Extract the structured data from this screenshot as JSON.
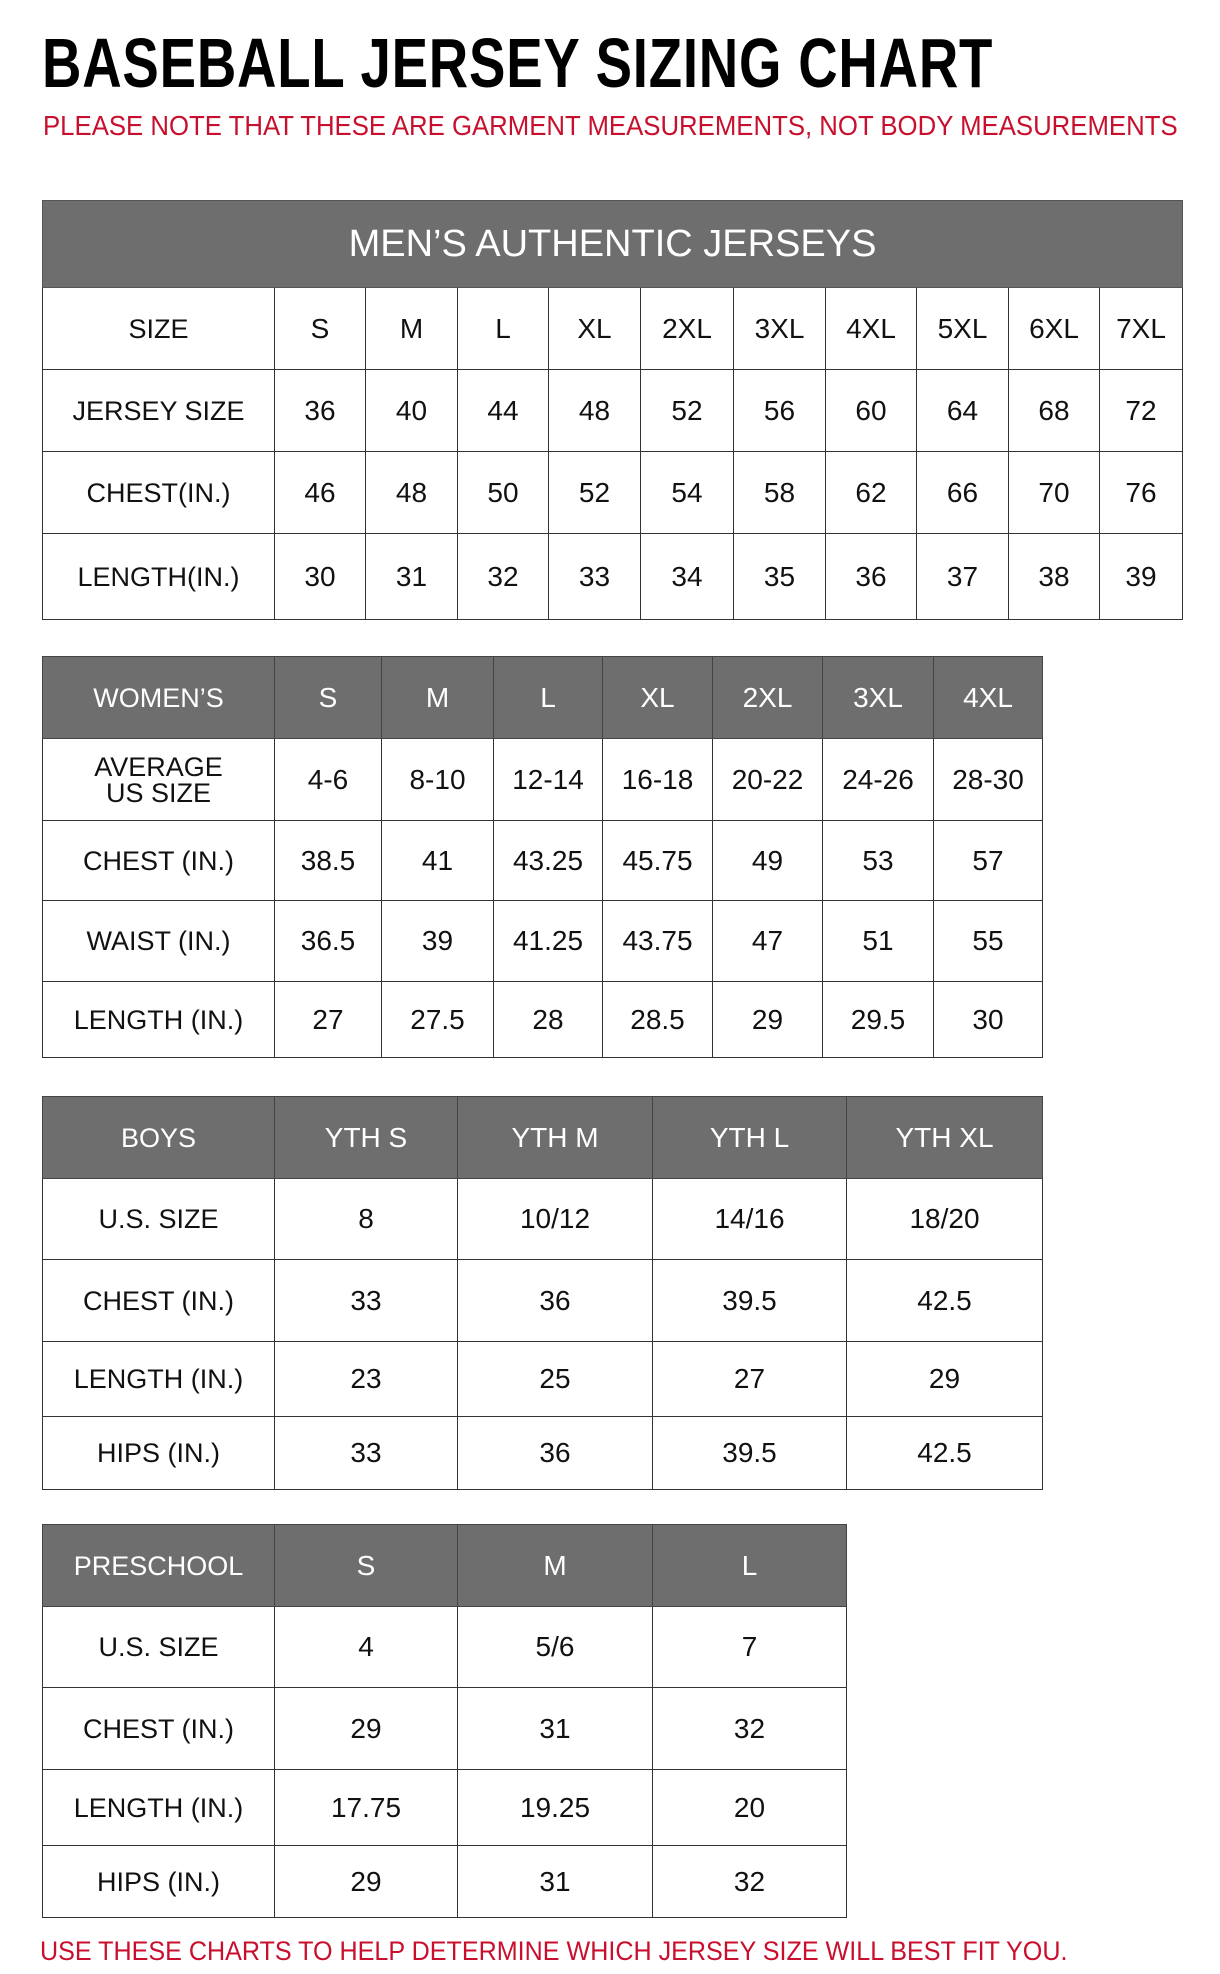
{
  "title": "BASEBALL JERSEY SIZING CHART",
  "note": "PLEASE NOTE THAT THESE ARE GARMENT MEASUREMENTS, NOT BODY MEASUREMENTS",
  "footer": "USE THESE CHARTS TO HELP DETERMINE WHICH JERSEY SIZE WILL BEST FIT YOU.",
  "colors": {
    "header_gray": "#6e6e6e",
    "note_red": "#c8102e"
  },
  "tables": [
    {
      "id": "mens",
      "banner": "MEN’S AUTHENTIC JERSEYS",
      "header_gray": false,
      "header": [
        "SIZE",
        "S",
        "M",
        "L",
        "XL",
        "2XL",
        "3XL",
        "4XL",
        "5XL",
        "6XL",
        "7XL"
      ],
      "rows": [
        [
          "JERSEY SIZE",
          "36",
          "40",
          "44",
          "48",
          "52",
          "56",
          "60",
          "64",
          "68",
          "72"
        ],
        [
          "CHEST(IN.)",
          "46",
          "48",
          "50",
          "52",
          "54",
          "58",
          "62",
          "66",
          "70",
          "76"
        ],
        [
          "LENGTH(IN.)",
          "30",
          "31",
          "32",
          "33",
          "34",
          "35",
          "36",
          "37",
          "38",
          "39"
        ]
      ]
    },
    {
      "id": "womens",
      "header_gray": true,
      "header": [
        "WOMEN’S",
        "S",
        "M",
        "L",
        "XL",
        "2XL",
        "3XL",
        "4XL"
      ],
      "rows": [
        [
          "AVERAGE US SIZE",
          "4-6",
          "8-10",
          "12-14",
          "16-18",
          "20-22",
          "24-26",
          "28-30"
        ],
        [
          "CHEST (IN.)",
          "38.5",
          "41",
          "43.25",
          "45.75",
          "49",
          "53",
          "57"
        ],
        [
          "WAIST (IN.)",
          "36.5",
          "39",
          "41.25",
          "43.75",
          "47",
          "51",
          "55"
        ],
        [
          "LENGTH (IN.)",
          "27",
          "27.5",
          "28",
          "28.5",
          "29",
          "29.5",
          "30"
        ]
      ]
    },
    {
      "id": "boys",
      "header_gray": true,
      "header": [
        "BOYS",
        "YTH S",
        "YTH M",
        "YTH L",
        "YTH XL"
      ],
      "rows": [
        [
          "U.S. SIZE",
          "8",
          "10/12",
          "14/16",
          "18/20"
        ],
        [
          "CHEST (IN.)",
          "33",
          "36",
          "39.5",
          "42.5"
        ],
        [
          "LENGTH (IN.)",
          "23",
          "25",
          "27",
          "29"
        ],
        [
          "HIPS (IN.)",
          "33",
          "36",
          "39.5",
          "42.5"
        ]
      ]
    },
    {
      "id": "preschool",
      "header_gray": true,
      "header": [
        "PRESCHOOL",
        "S",
        "M",
        "L"
      ],
      "rows": [
        [
          "U.S. SIZE",
          "4",
          "5/6",
          "7"
        ],
        [
          "CHEST (IN.)",
          "29",
          "31",
          "32"
        ],
        [
          "LENGTH (IN.)",
          "17.75",
          "19.25",
          "20"
        ],
        [
          "HIPS (IN.)",
          "29",
          "31",
          "32"
        ]
      ]
    }
  ]
}
